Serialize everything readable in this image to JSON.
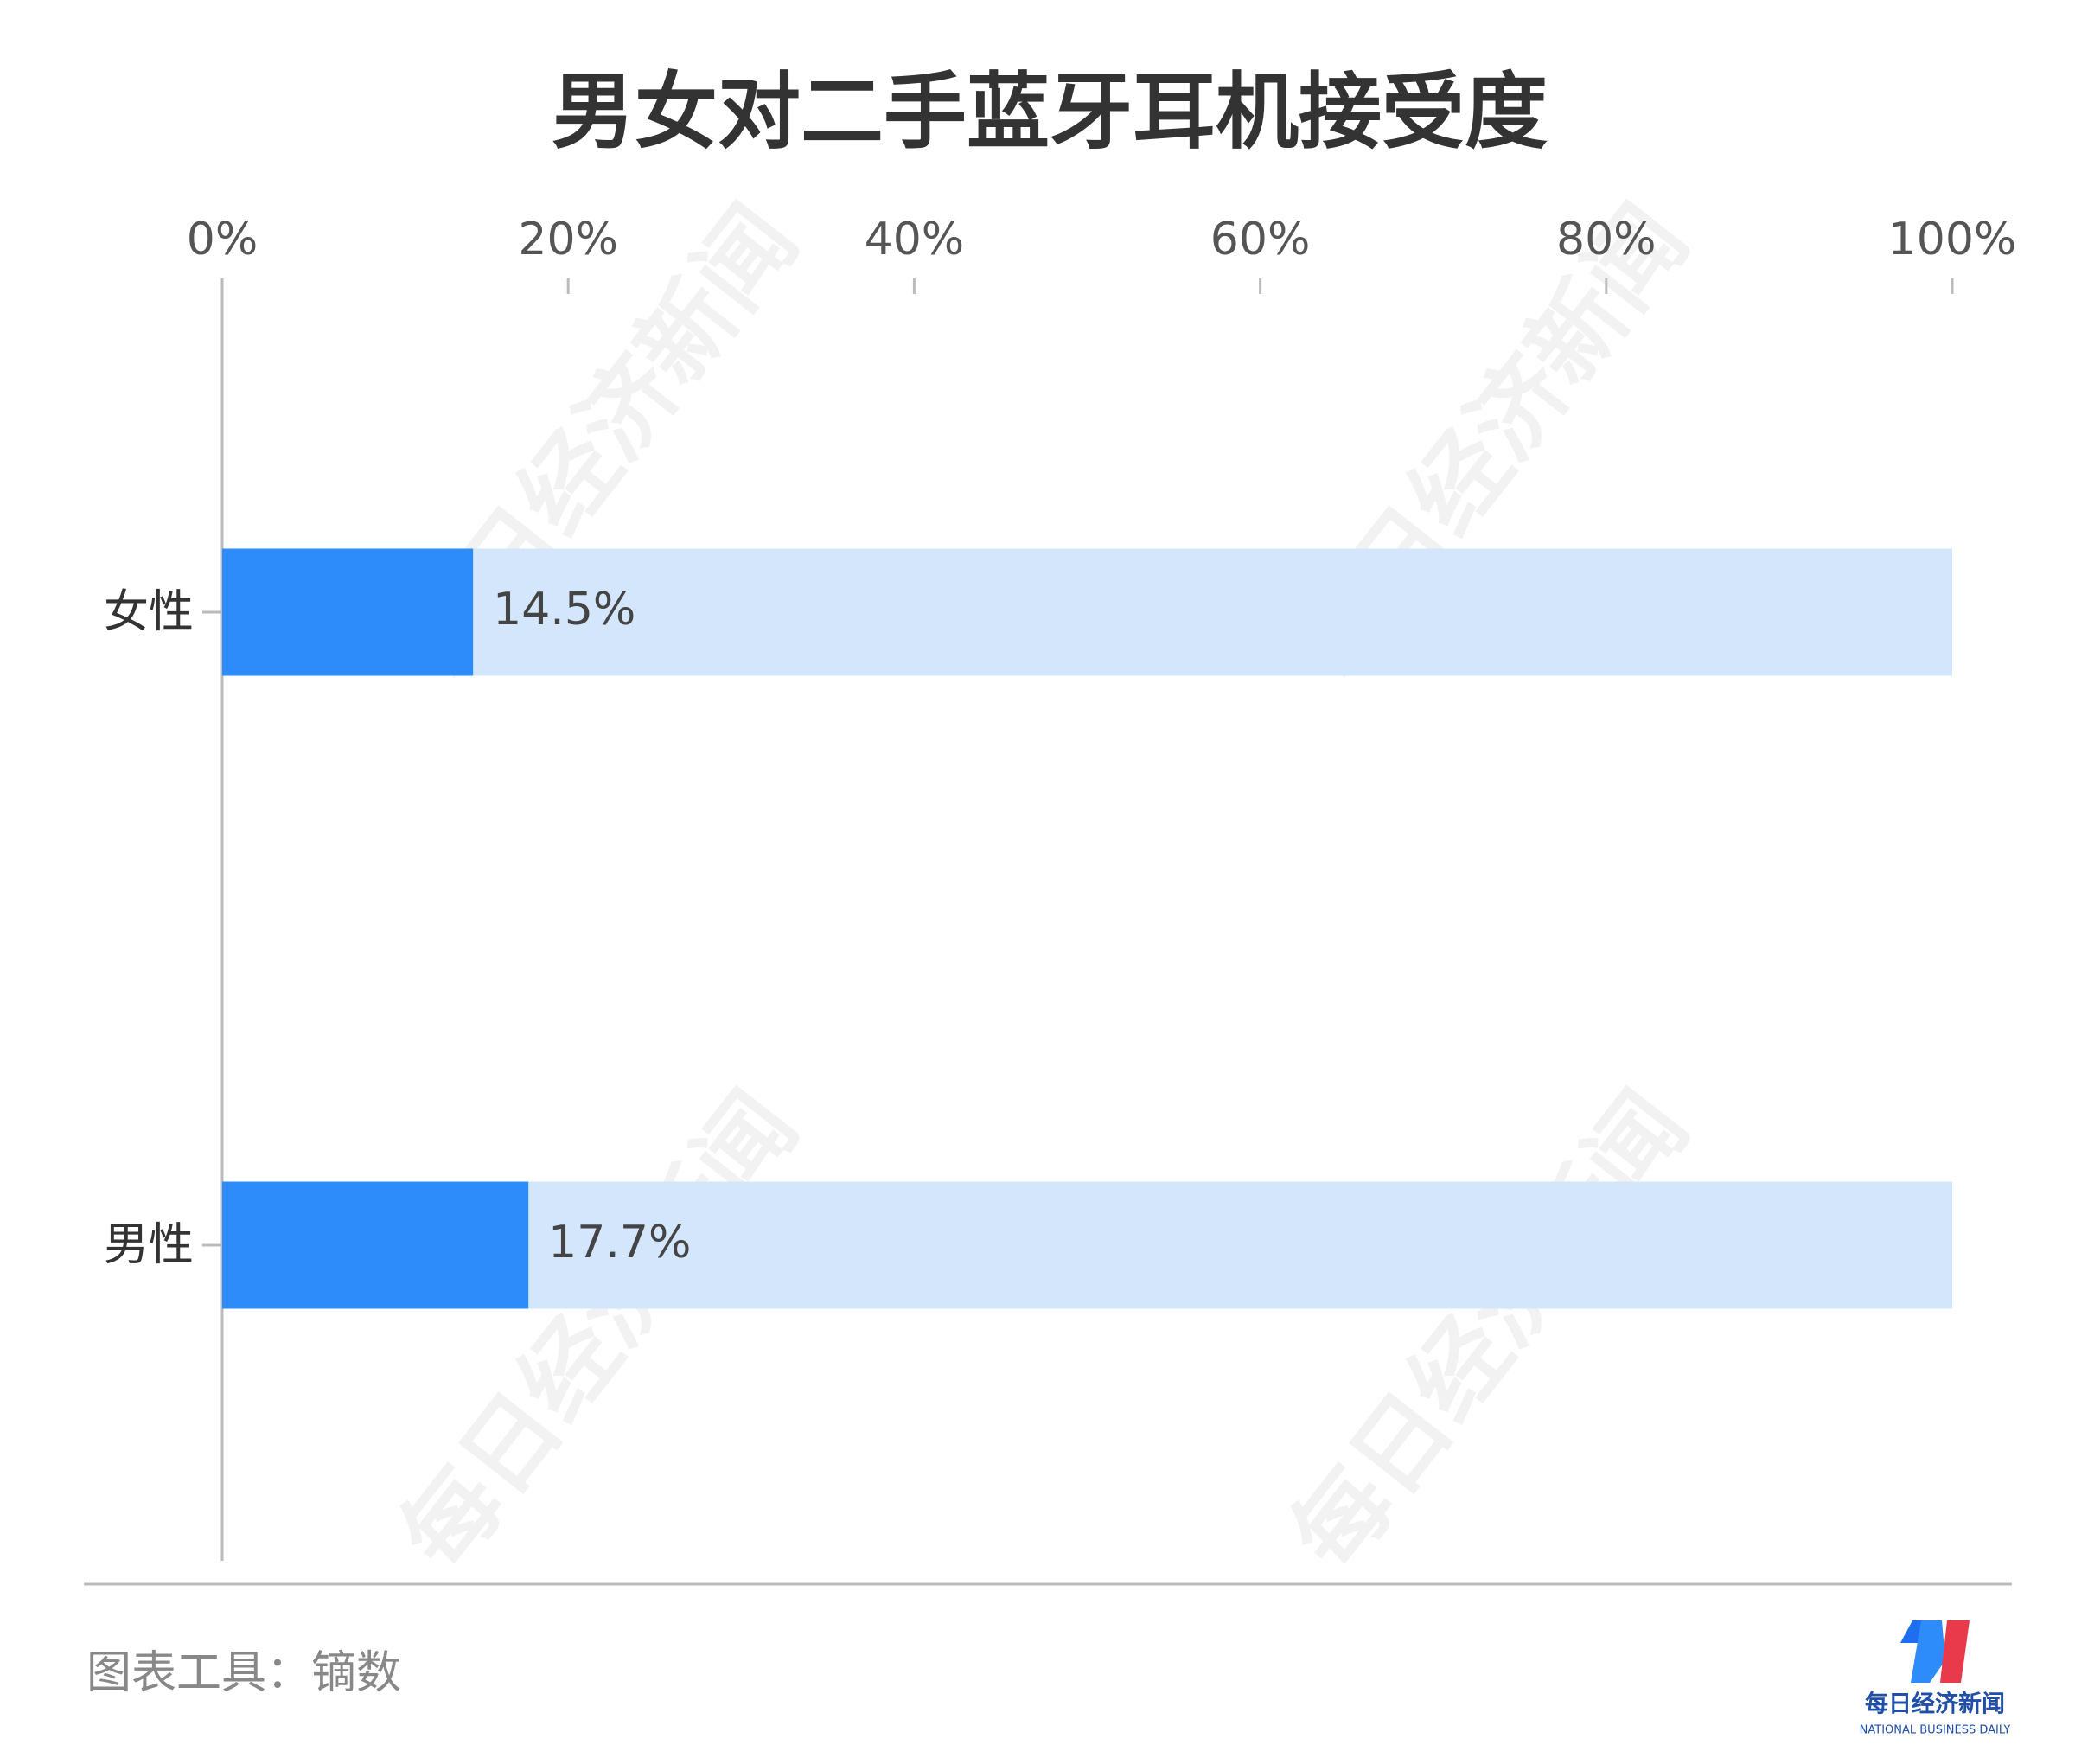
{
  "chart_data": {
    "type": "bar",
    "orientation": "horizontal",
    "title": "男女对二手蓝牙耳机接受度",
    "categories": [
      "女性",
      "男性"
    ],
    "values": [
      14.5,
      17.7
    ],
    "value_labels": [
      "14.5%",
      "17.7%"
    ],
    "color": "#2e8bfa",
    "track_color": "#d3e6fc",
    "xlim": [
      0,
      100
    ],
    "xticks": [
      {
        "value": 0,
        "label": "0%"
      },
      {
        "value": 20,
        "label": "20%"
      },
      {
        "value": 40,
        "label": "40%"
      },
      {
        "value": 60,
        "label": "60%"
      },
      {
        "value": 80,
        "label": "80%"
      },
      {
        "value": 100,
        "label": "100%"
      }
    ]
  },
  "watermark": "每日经济新闻",
  "footer": "图表工具：镝数",
  "logo": {
    "name": "每日经济新闻",
    "subtitle": "NATIONAL BUSINESS DAILY"
  }
}
